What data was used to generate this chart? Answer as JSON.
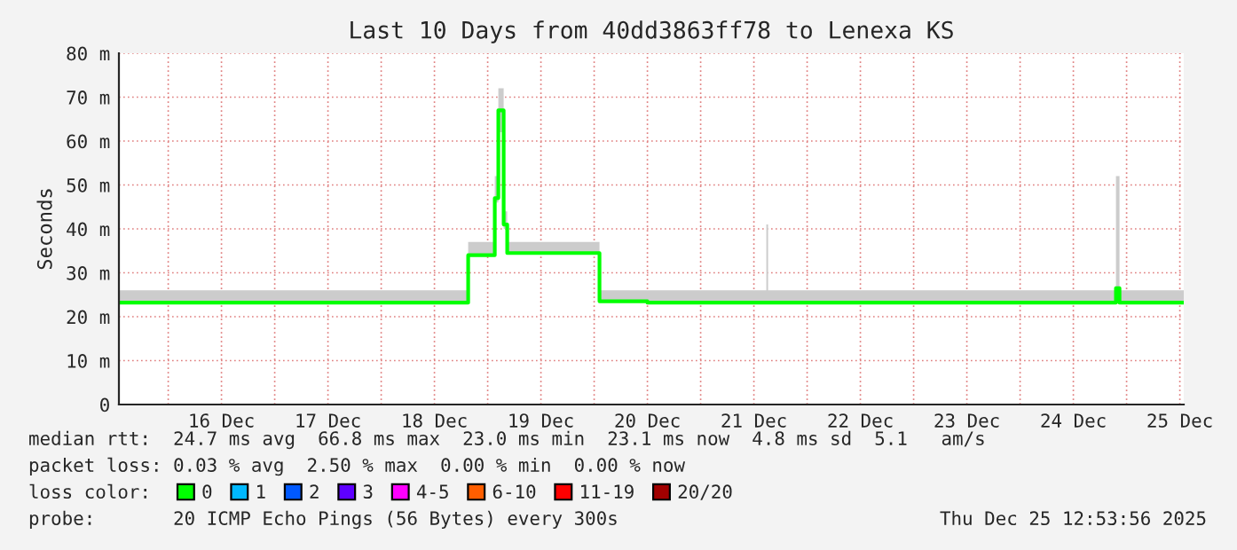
{
  "chart_data": {
    "type": "step",
    "title": "Last 10 Days from 40dd3863ff78 to Lenexa KS",
    "ylabel": "Seconds",
    "xlim": [
      "2025-12-15T12:53",
      "2025-12-25T12:53"
    ],
    "xticks": [
      {
        "value": "2025-12-16T00:00",
        "label": null
      },
      {
        "value": "2025-12-16T12:00",
        "label": "16 Dec"
      },
      {
        "value": "2025-12-17T00:00",
        "label": null
      },
      {
        "value": "2025-12-17T12:00",
        "label": "17 Dec"
      },
      {
        "value": "2025-12-18T00:00",
        "label": null
      },
      {
        "value": "2025-12-18T12:00",
        "label": "18 Dec"
      },
      {
        "value": "2025-12-19T00:00",
        "label": null
      },
      {
        "value": "2025-12-19T12:00",
        "label": "19 Dec"
      },
      {
        "value": "2025-12-20T00:00",
        "label": null
      },
      {
        "value": "2025-12-20T12:00",
        "label": "20 Dec"
      },
      {
        "value": "2025-12-21T00:00",
        "label": null
      },
      {
        "value": "2025-12-21T12:00",
        "label": "21 Dec"
      },
      {
        "value": "2025-12-22T00:00",
        "label": null
      },
      {
        "value": "2025-12-22T12:00",
        "label": "22 Dec"
      },
      {
        "value": "2025-12-23T00:00",
        "label": null
      },
      {
        "value": "2025-12-23T12:00",
        "label": "23 Dec"
      },
      {
        "value": "2025-12-24T00:00",
        "label": null
      },
      {
        "value": "2025-12-24T12:00",
        "label": "24 Dec"
      },
      {
        "value": "2025-12-25T00:00",
        "label": null
      },
      {
        "value": "2025-12-25T12:00",
        "label": "25 Dec"
      }
    ],
    "ylim": [
      0,
      80
    ],
    "yticks": [
      0,
      {
        "value": 10,
        "label": "10 m"
      },
      {
        "value": 20,
        "label": "20 m"
      },
      {
        "value": 30,
        "label": "30 m"
      },
      {
        "value": 40,
        "label": "40 m"
      },
      {
        "value": 50,
        "label": "50 m"
      },
      {
        "value": 60,
        "label": "60 m"
      },
      {
        "value": 70,
        "label": "70 m"
      },
      {
        "value": 80,
        "label": "80 m"
      }
    ],
    "grid": true,
    "legend": "bottom",
    "line_style": "solid",
    "x": [
      "2025-12-15T12:53",
      "2025-12-16T12:00",
      "2025-12-17T12:00",
      "2025-12-18T12:00",
      "2025-12-18T19:36",
      "2025-12-19T01:36",
      "2025-12-19T02:24",
      "2025-12-19T03:36",
      "2025-12-19T04:24",
      "2025-12-19T12:00",
      "2025-12-20T01:12",
      "2025-12-20T12:00",
      "2025-12-21T14:48",
      "2025-12-21T15:12",
      "2025-12-22T12:00",
      "2025-12-23T12:00",
      "2025-12-24T21:36",
      "2025-12-24T22:24",
      "2025-12-25T12:53"
    ],
    "series": [
      {
        "name": "0",
        "color": "#00ff00",
        "values": [
          23.2,
          23.2,
          23.2,
          23.2,
          34,
          47,
          67,
          41,
          34.5,
          34.5,
          23.5,
          23.2,
          23.2,
          23.2,
          23.2,
          23.2,
          26.5,
          23.2,
          23.2
        ],
        "lower": [
          23.2,
          23.2,
          23.2,
          23.2,
          34,
          46,
          62,
          40,
          34.5,
          34.5,
          23.5,
          23.2,
          23.2,
          23.2,
          23.2,
          23.2,
          23.2,
          23.2,
          23.2
        ],
        "upper": [
          26,
          26,
          26,
          26,
          37,
          52,
          72,
          44,
          37,
          37,
          26,
          26,
          41,
          26,
          26,
          26,
          52,
          26,
          26
        ]
      },
      {
        "name": "1",
        "color": "#00b8ff",
        "values": [
          null,
          null,
          null,
          null,
          null,
          null,
          null,
          null,
          null,
          null,
          null,
          null,
          null,
          null,
          null,
          null,
          null,
          null,
          null
        ]
      },
      {
        "name": "2",
        "color": "#0059ff",
        "values": [
          null,
          null,
          null,
          null,
          null,
          null,
          null,
          null,
          null,
          null,
          null,
          null,
          null,
          null,
          null,
          null,
          null,
          null,
          null
        ]
      },
      {
        "name": "3",
        "color": "#5e00ff",
        "values": [
          null,
          null,
          null,
          null,
          null,
          null,
          null,
          null,
          null,
          null,
          null,
          null,
          null,
          null,
          null,
          null,
          null,
          null,
          null
        ]
      },
      {
        "name": "4-5",
        "color": "#ff00fe",
        "values": [
          null,
          null,
          null,
          null,
          null,
          null,
          null,
          null,
          null,
          null,
          null,
          null,
          null,
          null,
          null,
          null,
          null,
          null,
          null
        ]
      },
      {
        "name": "6-10",
        "color": "#ff5e00",
        "values": [
          null,
          null,
          null,
          null,
          null,
          null,
          null,
          null,
          null,
          null,
          null,
          null,
          null,
          null,
          null,
          null,
          null,
          null,
          null
        ]
      },
      {
        "name": "11-19",
        "color": "#ff0000",
        "values": [
          null,
          null,
          null,
          null,
          null,
          null,
          null,
          null,
          null,
          null,
          null,
          null,
          null,
          null,
          null,
          null,
          null,
          null,
          null
        ]
      },
      {
        "name": "20/20",
        "color": "#a10000",
        "values": [
          null,
          null,
          null,
          null,
          null,
          null,
          null,
          null,
          null,
          null,
          null,
          null,
          null,
          null,
          null,
          null,
          null,
          null,
          null
        ]
      }
    ],
    "legend_title": "loss color:",
    "annotations": [
      "median rtt:  24.7 ms avg  66.8 ms max  23.0 ms min  23.1 ms now  4.8 ms sd  5.1   am/s",
      "packet loss: 0.03 % avg  2.50 % max  0.00 % min  0.00 % now",
      "probe:       20 ICMP Echo Pings (56 Bytes) every 300s",
      "Thu Dec 25 12:53:56 2025"
    ]
  }
}
